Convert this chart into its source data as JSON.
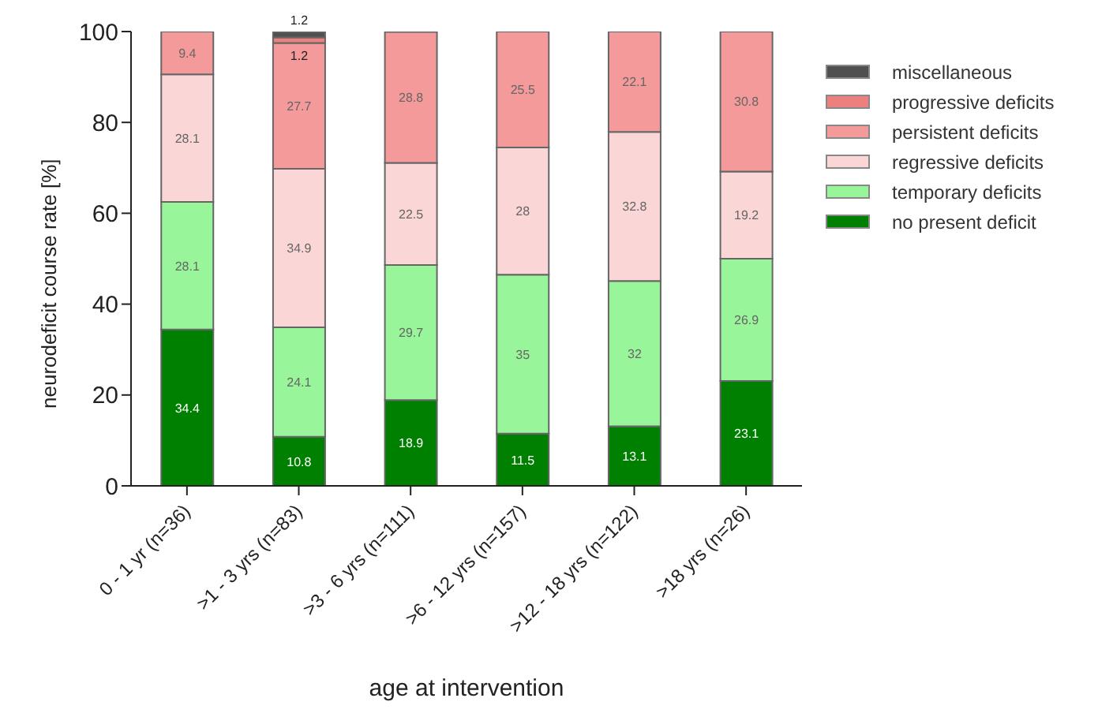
{
  "chart_data": {
    "type": "bar",
    "stacked": true,
    "xlabel": "age at intervention",
    "ylabel": "neurodeficit course rate [%]",
    "categories": [
      "0 - 1 yr (n=36)",
      ">1 - 3 yrs (n=83)",
      ">3 - 6 yrs (n=111)",
      ">6 - 12 yrs (n=157)",
      ">12 - 18 yrs (n=122)",
      ">18 yrs (n=26)"
    ],
    "series": [
      {
        "name": "no present deficit",
        "color": "#008000",
        "values": [
          34.4,
          10.8,
          18.9,
          11.5,
          13.1,
          23.1
        ]
      },
      {
        "name": "temporary deficits",
        "color": "#99f599",
        "values": [
          28.1,
          24.1,
          29.7,
          35,
          32,
          26.9
        ]
      },
      {
        "name": "regressive deficits",
        "color": "#fbd6d6",
        "values": [
          28.1,
          34.9,
          22.5,
          28,
          32.8,
          19.2
        ]
      },
      {
        "name": "persistent deficits",
        "color": "#f59a9a",
        "values": [
          9.4,
          27.7,
          28.8,
          25.5,
          22.1,
          30.8
        ]
      },
      {
        "name": "progressive deficits",
        "color": "#ee7f7f",
        "values": [
          null,
          1.2,
          null,
          null,
          null,
          null
        ]
      },
      {
        "name": "miscellaneous",
        "color": "#505050",
        "values": [
          null,
          1.2,
          null,
          null,
          null,
          null
        ]
      }
    ],
    "ylim": [
      0,
      100
    ],
    "yticks": [
      0,
      20,
      40,
      60,
      80,
      100
    ],
    "legend": "top right",
    "data_labels": true
  }
}
